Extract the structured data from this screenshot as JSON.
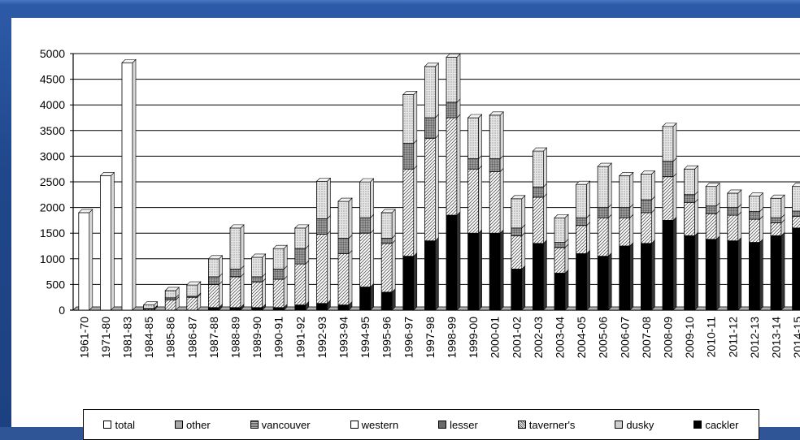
{
  "chart_data": {
    "type": "bar",
    "stacked": true,
    "categories": [
      "1961-70",
      "1971-80",
      "1981-83",
      "1984-85",
      "1985-86",
      "1986-87",
      "1987-88",
      "1988-89",
      "1989-90",
      "1990-91",
      "1991-92",
      "1992-93",
      "1993-94",
      "1994-95",
      "1995-96",
      "1996-97",
      "1997-98",
      "1998-99",
      "1999-00",
      "2000-01",
      "2001-02",
      "2002-03",
      "2003-04",
      "2004-05",
      "2005-06",
      "2006-07",
      "2007-08",
      "2008-09",
      "2009-10",
      "2010-11",
      "2011-12",
      "2012-13",
      "2013-14",
      "2014-15"
    ],
    "series": [
      {
        "name": "cackler",
        "color": "#000000",
        "pattern": "solid",
        "values": [
          0,
          0,
          0,
          0,
          0,
          0,
          50,
          50,
          50,
          50,
          100,
          130,
          100,
          450,
          350,
          1050,
          1350,
          1850,
          1500,
          1500,
          800,
          1300,
          720,
          1100,
          1050,
          1250,
          1300,
          1750,
          1450,
          1380,
          1350,
          1320,
          1450,
          1600
        ]
      },
      {
        "name": "dusky",
        "color": "#cfcfcf",
        "pattern": "dots",
        "values": [
          0,
          0,
          0,
          0,
          0,
          0,
          0,
          0,
          0,
          0,
          0,
          0,
          0,
          0,
          0,
          0,
          0,
          0,
          0,
          0,
          0,
          0,
          0,
          0,
          0,
          0,
          0,
          0,
          0,
          0,
          0,
          0,
          0,
          0
        ]
      },
      {
        "name": "taverner's",
        "color": "#ffffff",
        "pattern": "diag",
        "values": [
          0,
          0,
          0,
          20,
          200,
          250,
          450,
          600,
          500,
          550,
          800,
          1350,
          1000,
          1050,
          950,
          1700,
          2000,
          1900,
          1250,
          1200,
          650,
          900,
          500,
          550,
          750,
          550,
          600,
          850,
          650,
          500,
          500,
          450,
          250,
          230
        ]
      },
      {
        "name": "lesser",
        "color": "#6f6f6f",
        "pattern": "grid",
        "values": [
          0,
          0,
          0,
          10,
          40,
          20,
          150,
          150,
          100,
          200,
          300,
          300,
          300,
          300,
          100,
          500,
          400,
          300,
          200,
          250,
          150,
          200,
          100,
          150,
          200,
          200,
          250,
          300,
          150,
          150,
          150,
          150,
          100,
          100
        ]
      },
      {
        "name": "western",
        "color": "#ffffff",
        "pattern": "empty",
        "values": [
          0,
          0,
          0,
          0,
          0,
          0,
          0,
          0,
          0,
          0,
          0,
          0,
          0,
          0,
          0,
          0,
          0,
          0,
          0,
          0,
          0,
          0,
          0,
          0,
          0,
          0,
          0,
          0,
          0,
          0,
          0,
          0,
          0,
          0
        ]
      },
      {
        "name": "vancouver",
        "color": "#8a8a8a",
        "pattern": "hstripe",
        "values": [
          0,
          0,
          0,
          0,
          0,
          0,
          0,
          0,
          0,
          0,
          0,
          0,
          0,
          0,
          0,
          0,
          0,
          0,
          0,
          0,
          0,
          0,
          0,
          0,
          0,
          0,
          0,
          0,
          0,
          0,
          0,
          0,
          0,
          0
        ]
      },
      {
        "name": "other",
        "color": "#a8a8a8",
        "pattern": "dots",
        "values": [
          0,
          0,
          0,
          70,
          140,
          220,
          350,
          800,
          380,
          400,
          400,
          730,
          720,
          700,
          500,
          950,
          1000,
          880,
          800,
          850,
          570,
          700,
          480,
          650,
          800,
          620,
          500,
          680,
          500,
          380,
          280,
          300,
          380,
          480
        ]
      },
      {
        "name": "total",
        "color": "#ffffff",
        "pattern": "empty",
        "values": [
          1900,
          2620,
          4820,
          0,
          0,
          0,
          0,
          0,
          0,
          0,
          0,
          0,
          0,
          0,
          0,
          0,
          0,
          0,
          0,
          0,
          0,
          0,
          0,
          0,
          0,
          0,
          0,
          0,
          0,
          0,
          0,
          0,
          0,
          0
        ]
      }
    ],
    "legend": [
      "total",
      "other",
      "vancouver",
      "western",
      "lesser",
      "taverner's",
      "dusky",
      "cackler"
    ],
    "yticks": [
      0,
      500,
      1000,
      1500,
      2000,
      2500,
      3000,
      3500,
      4000,
      4500,
      5000
    ],
    "ylim": [
      0,
      5000
    ],
    "grid": true,
    "legend_placement": "bottom"
  }
}
